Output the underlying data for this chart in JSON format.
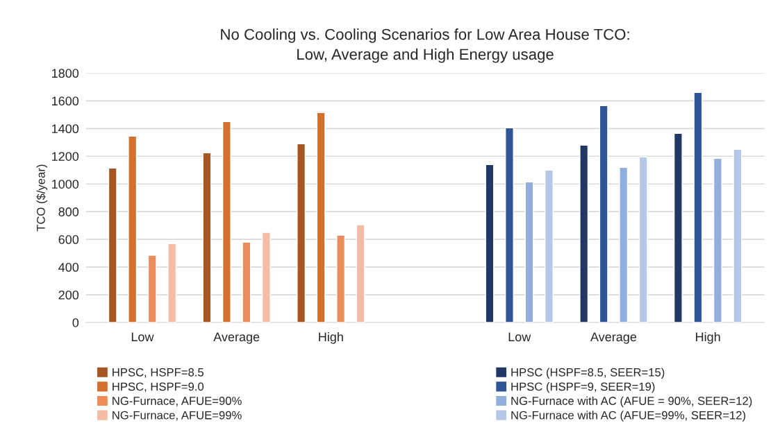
{
  "chart_data": {
    "type": "bar",
    "title": "No Cooling vs. Cooling Scenarios for Low Area House TCO:\nLow, Average and High Energy usage",
    "ylabel": "TCO ($/year)",
    "categories": [
      "Low",
      "Average",
      "High",
      null,
      "Low",
      "Average",
      "High"
    ],
    "ylim": [
      0,
      1800
    ],
    "yticks": [
      0,
      200,
      400,
      600,
      800,
      1000,
      1200,
      1400,
      1600,
      1800
    ],
    "grid": "y",
    "legend": "bottom",
    "series": [
      {
        "name": "HPSC, HSPF=8.5",
        "color": "#a65622",
        "values": [
          1115,
          1225,
          1290,
          null,
          null,
          null,
          null
        ]
      },
      {
        "name": "HPSC, HSPF=9.0",
        "color": "#d4702e",
        "values": [
          1345,
          1450,
          1515,
          null,
          null,
          null,
          null
        ]
      },
      {
        "name": "NG-Furnace, AFUE=90%",
        "color": "#ed8c5a",
        "values": [
          485,
          580,
          630,
          null,
          null,
          null,
          null
        ]
      },
      {
        "name": "NG-Furnace, AFUE=99%",
        "color": "#f4bca5",
        "values": [
          570,
          650,
          705,
          null,
          null,
          null,
          null
        ]
      },
      {
        "name": "HPSC (HSPF=8.5, SEER=15)",
        "color": "#213864",
        "values": [
          null,
          null,
          null,
          null,
          1140,
          1280,
          1365
        ]
      },
      {
        "name": "HPSC (HSPF=9, SEER=19)",
        "color": "#2f5595",
        "values": [
          null,
          null,
          null,
          null,
          1405,
          1565,
          1660
        ]
      },
      {
        "name": "NG-Furnace with AC (AFUE = 90%, SEER=12)",
        "color": "#91aedd",
        "values": [
          null,
          null,
          null,
          null,
          1015,
          1120,
          1185
        ]
      },
      {
        "name": "NG-Furnace with AC (AFUE=99%, SEER=12)",
        "color": "#b5c8e7",
        "values": [
          null,
          null,
          null,
          null,
          1100,
          1195,
          1250
        ]
      }
    ]
  }
}
